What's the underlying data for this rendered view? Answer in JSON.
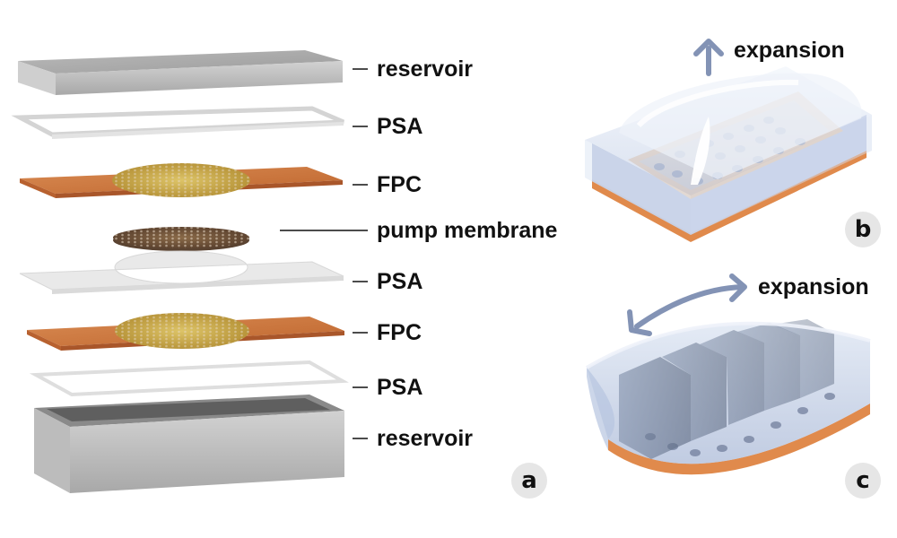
{
  "panel_a": {
    "layers": [
      {
        "label": "reservoir"
      },
      {
        "label": "PSA"
      },
      {
        "label": "FPC"
      },
      {
        "label": "pump membrane"
      },
      {
        "label": "PSA"
      },
      {
        "label": "FPC"
      },
      {
        "label": "PSA"
      },
      {
        "label": "reservoir"
      }
    ],
    "badge": "a"
  },
  "panel_b": {
    "arrow_label": "expansion",
    "badge": "b"
  },
  "panel_c": {
    "arrow_label": "expansion",
    "badge": "c"
  },
  "colors": {
    "reservoir": "#bdbdbd",
    "fpc": "#c8743f",
    "electrode": "#c9a74a",
    "membrane": "#7a5a3a",
    "gel": "#c9d6ea",
    "arrow": "#8393b5",
    "badge_bg": "#e6e6e6"
  }
}
